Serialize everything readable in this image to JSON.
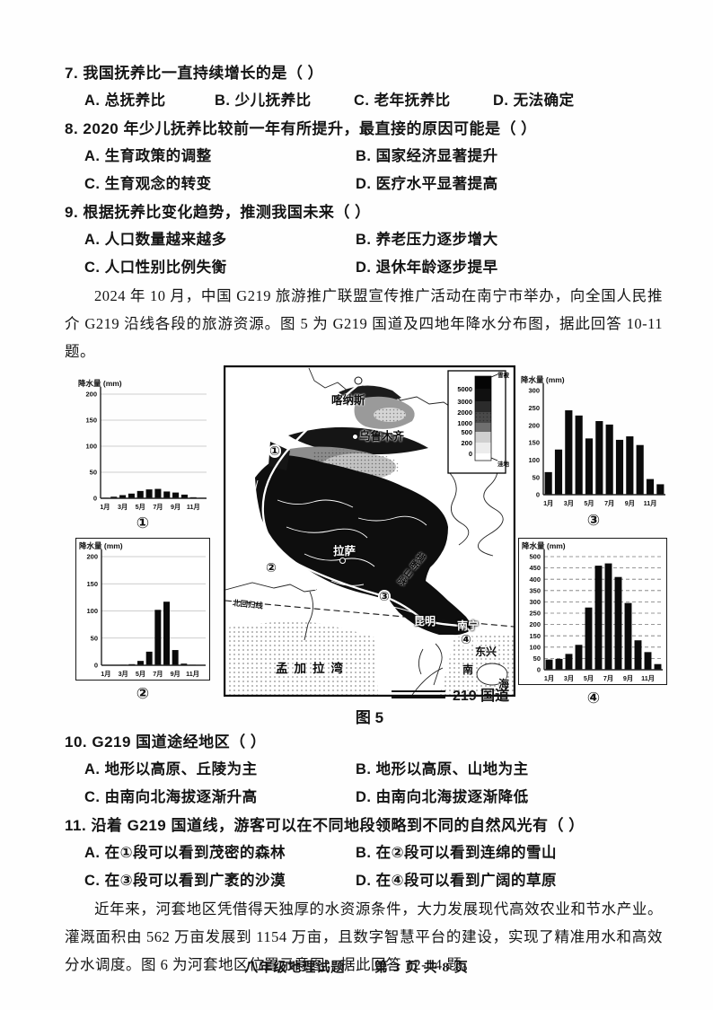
{
  "questions": [
    {
      "number": "7.",
      "stem": "我国抚养比一直持续增长的是（    ）",
      "options": [
        "A. 总抚养比",
        "B. 少儿抚养比",
        "C. 老年抚养比",
        "D. 无法确定"
      ]
    },
    {
      "number": "8.",
      "stem": "2020 年少儿抚养比较前一年有所提升，最直接的原因可能是（    ）",
      "options": [
        "A. 生育政策的调整",
        "B. 国家经济显著提升",
        "C. 生育观念的转变",
        "D. 医疗水平显著提高"
      ]
    },
    {
      "number": "9.",
      "stem": "根据抚养比变化趋势，推测我国未来（    ）",
      "options": [
        "A. 人口数量越来越多",
        "B. 养老压力逐步增大",
        "C. 人口性别比例失衡",
        "D. 退休年龄逐步提早"
      ]
    },
    {
      "number": "10.",
      "stem": "G219 国道途经地区（    ）",
      "options": [
        "A. 地形以高原、丘陵为主",
        "B. 地形以高原、山地为主",
        "C. 由南向北海拔逐渐升高",
        "D. 由南向北海拔逐渐降低"
      ]
    },
    {
      "number": "11.",
      "stem": "沿着 G219 国道线，游客可以在不同地段领略到不同的自然风光有（    ）",
      "options": [
        "A. 在①段可以看到茂密的森林",
        "B. 在②段可以看到连绵的雪山",
        "C. 在③段可以看到广袤的沙漠",
        "D. 在④段可以看到广阔的草原"
      ]
    }
  ],
  "paragraphs": {
    "intro_g219": "2024 年 10 月，中国 G219 旅游推广联盟宣传推广活动在南宁市举办，向全国人民推介 G219 沿线各段的旅游资源。图 5 为 G219 国道及四地年降水分布图，据此回答 10-11 题。",
    "intro_hetao": "近年来，河套地区凭借得天独厚的水资源条件，大力发展现代高效农业和节水产业。灌溉面积由 562 万亩发展到 1154 万亩，且数字智慧平台的建设，实现了精准用水和高效分水调度。图 6 为河套地区位置示意图，据此回答 12-14 题。"
  },
  "figure": {
    "caption": "图 5",
    "road_legend": "219 国道",
    "map": {
      "labels": {
        "kanas": "喀纳斯",
        "urumqi": "乌鲁木齐",
        "lhasa": "拉萨",
        "hengduan": "横断山脉",
        "kunming": "昆明",
        "nanning": "南宁",
        "dongxing": "东兴",
        "sea1": "南",
        "sea2": "海",
        "bengal": "孟加拉湾",
        "tropic": "北回归线",
        "seg1": "①",
        "seg2": "②",
        "seg3": "③",
        "seg4": "④"
      },
      "legend": {
        "top": "雪被",
        "bottom": "洼地",
        "values": [
          "5000",
          "3000",
          "2000",
          "1000",
          "500",
          "200",
          "0"
        ]
      }
    }
  },
  "chart_data": [
    {
      "type": "bar",
      "station": "①",
      "title": "降水量 (mm)",
      "x_ticks": [
        "1月",
        "3月",
        "5月",
        "7月",
        "9月",
        "11月"
      ],
      "values": [
        1,
        3,
        6,
        9,
        14,
        17,
        18,
        13,
        11,
        7,
        2,
        1
      ],
      "ylim": [
        0,
        200
      ],
      "ystep": 50,
      "grid": "faint"
    },
    {
      "type": "bar",
      "station": "②",
      "title": "降水量 (mm)",
      "x_ticks": [
        "1月",
        "3月",
        "5月",
        "7月",
        "9月",
        "11月"
      ],
      "values": [
        0,
        0,
        1,
        2,
        8,
        25,
        102,
        117,
        28,
        3,
        1,
        0
      ],
      "ylim": [
        0,
        200
      ],
      "ystep": 50,
      "grid": "faint"
    },
    {
      "type": "bar",
      "station": "③",
      "title": "降水量 (mm)",
      "x_ticks": [
        "1月",
        "3月",
        "5月",
        "7月",
        "9月",
        "11月"
      ],
      "values": [
        65,
        130,
        243,
        228,
        162,
        212,
        202,
        158,
        168,
        143,
        45,
        30
      ],
      "ylim": [
        0,
        300
      ],
      "ystep": 50,
      "grid": "none"
    },
    {
      "type": "bar",
      "station": "④",
      "title": "降水量 (mm)",
      "x_ticks": [
        "1月",
        "3月",
        "5月",
        "7月",
        "9月",
        "11月"
      ],
      "values": [
        45,
        48,
        70,
        110,
        275,
        460,
        470,
        410,
        295,
        130,
        78,
        25
      ],
      "ylim": [
        0,
        500
      ],
      "ystep": 50,
      "grid": "dashed"
    }
  ],
  "footer": {
    "left": "八年级地理试题",
    "right": "第 3 页 共 8 页"
  }
}
